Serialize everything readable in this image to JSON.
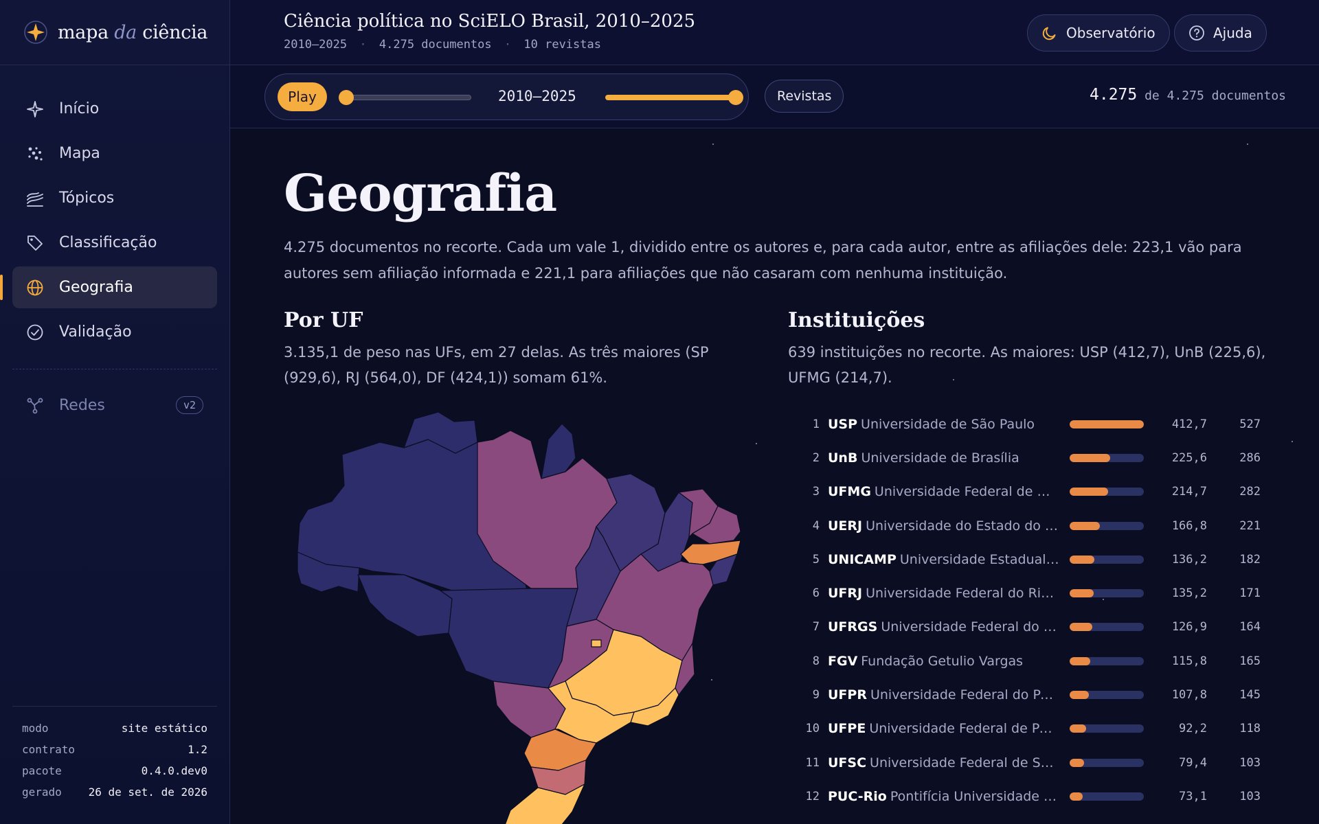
{
  "brand": {
    "name_a": "mapa",
    "name_b": "da",
    "name_c": "ciência"
  },
  "sidebar": {
    "items": [
      {
        "label": "Início",
        "icon": "sparkle-icon"
      },
      {
        "label": "Mapa",
        "icon": "scatter-icon"
      },
      {
        "label": "Tópicos",
        "icon": "layers-icon"
      },
      {
        "label": "Classificação",
        "icon": "tag-icon"
      },
      {
        "label": "Geografia",
        "icon": "globe-icon",
        "active": true
      },
      {
        "label": "Validação",
        "icon": "check-circle-icon"
      }
    ],
    "extra": {
      "label": "Redes",
      "badge": "v2",
      "icon": "network-icon"
    },
    "meta": [
      {
        "k": "modo",
        "v": "site estático"
      },
      {
        "k": "contrato",
        "v": "1.2"
      },
      {
        "k": "pacote",
        "v": "0.4.0.dev0"
      },
      {
        "k": "gerado",
        "v": "26 de set. de 2026"
      }
    ]
  },
  "header": {
    "title": "Ciência política no SciELO Brasil, 2010–2025",
    "sub_range": "2010–2025",
    "sub_docs": "4.275 documentos",
    "sub_journals": "10 revistas",
    "sep": "·",
    "btn_theme": "Observatório",
    "btn_help": "Ajuda"
  },
  "controls": {
    "play": "Play",
    "range": "2010–2025",
    "journals": "Revistas",
    "count_value": "4.275",
    "count_text": "de 4.275 documentos"
  },
  "page": {
    "title": "Geografia",
    "lead": "4.275 documentos no recorte. Cada um vale 1, dividido entre os autores e, para cada autor, entre as afiliações dele: 223,1 vão para autores sem afiliação informada e 221,1 para afiliações que não casaram com nenhuma instituição.",
    "uf_title": "Por UF",
    "uf_text": "3.135,1 de peso nas UFs, em 27 delas. As três maiores (SP (929,6), RJ (564,0), DF (424,1)) somam 61%.",
    "inst_title": "Instituições",
    "inst_text": "639 instituições no recorte. As maiores: USP (412,7), UnB (225,6), UFMG (214,7)."
  },
  "colors": {
    "accent": "#f5ad3f",
    "bar": "#e98b47",
    "low": "#2e2d6b",
    "mid": "#8a4a7e",
    "high": "#ffc160"
  },
  "institutions": [
    {
      "rank": "1",
      "abbr": "USP",
      "name": "Universidade de São Paulo",
      "weight": "412,7",
      "count": "527",
      "value": 412.7
    },
    {
      "rank": "2",
      "abbr": "UnB",
      "name": "Universidade de Brasília",
      "weight": "225,6",
      "count": "286",
      "value": 225.6
    },
    {
      "rank": "3",
      "abbr": "UFMG",
      "name": "Universidade Federal de Minas Gerais",
      "weight": "214,7",
      "count": "282",
      "value": 214.7
    },
    {
      "rank": "4",
      "abbr": "UERJ",
      "name": "Universidade do Estado do Rio de Janeiro",
      "weight": "166,8",
      "count": "221",
      "value": 166.8
    },
    {
      "rank": "5",
      "abbr": "UNICAMP",
      "name": "Universidade Estadual de Campinas",
      "weight": "136,2",
      "count": "182",
      "value": 136.2
    },
    {
      "rank": "6",
      "abbr": "UFRJ",
      "name": "Universidade Federal do Rio de Janeiro",
      "weight": "135,2",
      "count": "171",
      "value": 135.2
    },
    {
      "rank": "7",
      "abbr": "UFRGS",
      "name": "Universidade Federal do Rio Grande do Sul",
      "weight": "126,9",
      "count": "164",
      "value": 126.9
    },
    {
      "rank": "8",
      "abbr": "FGV",
      "name": "Fundação Getulio Vargas",
      "weight": "115,8",
      "count": "165",
      "value": 115.8
    },
    {
      "rank": "9",
      "abbr": "UFPR",
      "name": "Universidade Federal do Paraná",
      "weight": "107,8",
      "count": "145",
      "value": 107.8
    },
    {
      "rank": "10",
      "abbr": "UFPE",
      "name": "Universidade Federal de Pernambuco",
      "weight": "92,2",
      "count": "118",
      "value": 92.2
    },
    {
      "rank": "11",
      "abbr": "UFSC",
      "name": "Universidade Federal de Santa Catarina",
      "weight": "79,4",
      "count": "103",
      "value": 79.4
    },
    {
      "rank": "12",
      "abbr": "PUC-Rio",
      "name": "Pontifícia Universidade Católica do Rio de Janeiro",
      "weight": "73,1",
      "count": "103",
      "value": 73.1
    }
  ]
}
